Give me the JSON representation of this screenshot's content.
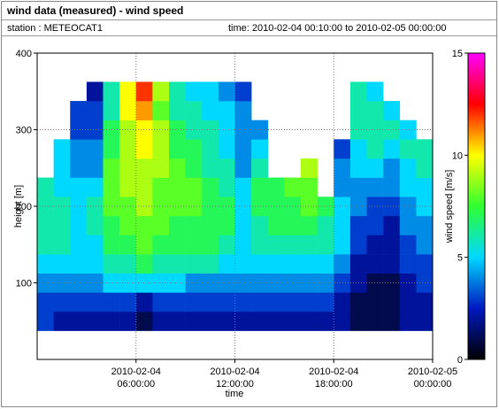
{
  "chart_data": {
    "type": "heatmap",
    "title": "wind data (measured) - wind speed",
    "station": "station : METEOCAT1",
    "time_range": "time: 2010-02-04 00:10:00 to 2010-02-05 00:00:00",
    "x_label": "time",
    "y_label": "height [m]",
    "colorbar_label": "wind speed [m/s]",
    "xlim": [
      "2010-02-04 00:00:00",
      "2010-02-05 00:00:00"
    ],
    "xticks": [
      {
        "value": "2010-02-04 06:00:00",
        "label": [
          "2010-02-04",
          "06:00:00"
        ]
      },
      {
        "value": "2010-02-04 12:00:00",
        "label": [
          "2010-02-04",
          "12:00:00"
        ]
      },
      {
        "value": "2010-02-04 18:00:00",
        "label": [
          "2010-02-04",
          "18:00:00"
        ]
      },
      {
        "value": "2010-02-05 00:00:00",
        "label": [
          "2010-02-05",
          "00:00:00"
        ]
      }
    ],
    "ylim": [
      0,
      400
    ],
    "yticks": [
      100,
      200,
      300,
      400
    ],
    "clim": [
      0,
      15
    ],
    "cticks": [
      0,
      5,
      10,
      15
    ],
    "colormap": [
      "#000000",
      "#0018c0",
      "#00d8ff",
      "#30ff30",
      "#ffff00",
      "#ff0000",
      "#ff00ff"
    ],
    "grid": true,
    "x": [
      "2010-02-04 00:00:00",
      "2010-02-04 01:00:00",
      "2010-02-04 02:00:00",
      "2010-02-04 03:00:00",
      "2010-02-04 04:00:00",
      "2010-02-04 05:00:00",
      "2010-02-04 06:00:00",
      "2010-02-04 07:00:00",
      "2010-02-04 08:00:00",
      "2010-02-04 09:00:00",
      "2010-02-04 10:00:00",
      "2010-02-04 11:00:00",
      "2010-02-04 12:00:00",
      "2010-02-04 13:00:00",
      "2010-02-04 14:00:00",
      "2010-02-04 15:00:00",
      "2010-02-04 16:00:00",
      "2010-02-04 17:00:00",
      "2010-02-04 18:00:00",
      "2010-02-04 19:00:00",
      "2010-02-04 20:00:00",
      "2010-02-04 21:00:00",
      "2010-02-04 22:00:00",
      "2010-02-04 23:00:00"
    ],
    "y": [
      50,
      75,
      100,
      125,
      150,
      175,
      200,
      225,
      250,
      275,
      300,
      325,
      350
    ],
    "values": [
      [
        3,
        3,
        4,
        5,
        6,
        6,
        6,
        6,
        null,
        null,
        null,
        null,
        null
      ],
      [
        2,
        3,
        4,
        5,
        6,
        6,
        6,
        5,
        5,
        5,
        null,
        null,
        null
      ],
      [
        2,
        3,
        4,
        5,
        5,
        5,
        5,
        5,
        4,
        4,
        3,
        3,
        null
      ],
      [
        2,
        3,
        4,
        5,
        5,
        6,
        6,
        5,
        4,
        4,
        3,
        3,
        2
      ],
      [
        2,
        3,
        5,
        6,
        7,
        7,
        8,
        8,
        8,
        7,
        7,
        6,
        6
      ],
      [
        2,
        3,
        5,
        6,
        7,
        8,
        8,
        9,
        9,
        9,
        9,
        10,
        10
      ],
      [
        1,
        2,
        5,
        7,
        8,
        8,
        9,
        9,
        9,
        10,
        10,
        11,
        12
      ],
      [
        2,
        3,
        5,
        6,
        7,
        8,
        8,
        8,
        9,
        9,
        9,
        8,
        9
      ],
      [
        2,
        3,
        5,
        6,
        7,
        7,
        8,
        8,
        8,
        7,
        7,
        6,
        6
      ],
      [
        2,
        3,
        4,
        6,
        7,
        7,
        8,
        8,
        7,
        7,
        6,
        6,
        5
      ],
      [
        2,
        3,
        4,
        6,
        7,
        7,
        7,
        7,
        6,
        6,
        6,
        5,
        5
      ],
      [
        2,
        3,
        4,
        5,
        6,
        7,
        7,
        6,
        6,
        5,
        5,
        5,
        4
      ],
      [
        2,
        3,
        4,
        5,
        5,
        5,
        5,
        5,
        4,
        4,
        4,
        4,
        3
      ],
      [
        2,
        3,
        4,
        5,
        6,
        6,
        7,
        7,
        6,
        5,
        4,
        null,
        null
      ],
      [
        2,
        3,
        4,
        5,
        6,
        7,
        7,
        7,
        null,
        null,
        null,
        null,
        null
      ],
      [
        2,
        3,
        4,
        5,
        6,
        7,
        7,
        8,
        null,
        null,
        null,
        null,
        null
      ],
      [
        2,
        3,
        4,
        5,
        6,
        7,
        8,
        8,
        9,
        null,
        null,
        null,
        null
      ],
      [
        2,
        3,
        4,
        5,
        6,
        6,
        7,
        null,
        null,
        null,
        null,
        null,
        null
      ],
      [
        2,
        2,
        3,
        4,
        5,
        5,
        5,
        4,
        4,
        3,
        null,
        null,
        null
      ],
      [
        1,
        1,
        2,
        2,
        3,
        3,
        4,
        4,
        5,
        5,
        6,
        6,
        6
      ],
      [
        1,
        1,
        1,
        2,
        2,
        3,
        3,
        4,
        5,
        6,
        6,
        6,
        5
      ],
      [
        1,
        1,
        1,
        2,
        2,
        2,
        3,
        4,
        4,
        5,
        6,
        5,
        null
      ],
      [
        2,
        2,
        2,
        3,
        3,
        4,
        4,
        5,
        5,
        6,
        5,
        null,
        null
      ],
      [
        2,
        2,
        3,
        3,
        4,
        4,
        5,
        5,
        6,
        6,
        null,
        null,
        null
      ]
    ]
  }
}
